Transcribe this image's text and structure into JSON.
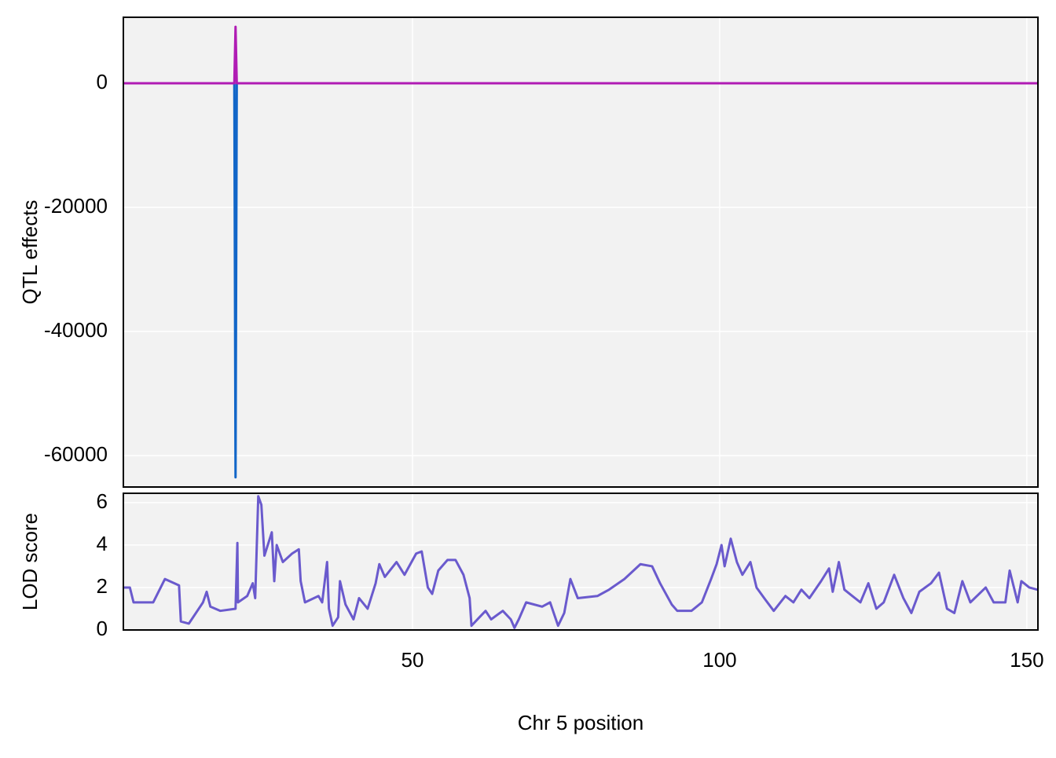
{
  "chart_data": [
    {
      "type": "line",
      "ylabel": "QTL effects",
      "xlim": [
        2.94,
        151.8
      ],
      "ylim": [
        -65063,
        10633
      ],
      "yticks": [
        0,
        -20000,
        -40000,
        -60000
      ],
      "grid": true,
      "series": [
        {
          "color": "#1266c8",
          "x": [
            2.94,
            21.0,
            21.2,
            21.4,
            151.8
          ],
          "values": [
            0,
            0,
            -63500,
            0,
            0
          ]
        },
        {
          "color": "#b01cb4",
          "x": [
            2.94,
            21.0,
            21.2,
            21.4,
            151.8
          ],
          "values": [
            0,
            0,
            9100,
            0,
            0
          ]
        }
      ]
    },
    {
      "type": "line",
      "ylabel": "LOD score",
      "xlabel": "Chr 5 position",
      "xlim": [
        2.94,
        151.8
      ],
      "ylim": [
        0,
        6.44
      ],
      "xticks": [
        50,
        100,
        150
      ],
      "yticks": [
        0,
        2,
        4,
        6
      ],
      "grid": true,
      "series": [
        {
          "color": "#6a5acd",
          "x": [
            3.0,
            4.0,
            4.6,
            7.8,
            9.7,
            12.0,
            12.3,
            13.6,
            15.9,
            16.5,
            17.1,
            18.7,
            21.2,
            21.5,
            21.6,
            23.1,
            24.0,
            24.4,
            24.9,
            25.4,
            25.9,
            27.1,
            27.5,
            27.9,
            28.9,
            30.4,
            31.5,
            31.8,
            32.5,
            34.7,
            35.3,
            36.1,
            36.4,
            37.0,
            37.9,
            38.2,
            39.1,
            40.4,
            41.3,
            42.7,
            44.0,
            44.6,
            45.5,
            47.4,
            48.7,
            50.6,
            51.5,
            52.5,
            53.2,
            54.2,
            55.7,
            57.0,
            58.3,
            59.3,
            59.6,
            60.9,
            61.9,
            62.8,
            64.7,
            66.0,
            66.6,
            67.3,
            68.5,
            71.1,
            72.4,
            73.7,
            74.7,
            75.7,
            76.9,
            80.1,
            82.0,
            84.5,
            87.1,
            89.0,
            90.3,
            92.2,
            93.1,
            95.4,
            97.1,
            98.6,
            99.5,
            100.3,
            100.8,
            101.8,
            102.8,
            103.7,
            105.0,
            106.0,
            107.5,
            108.8,
            110.7,
            112.0,
            113.3,
            114.6,
            116.5,
            117.8,
            118.4,
            119.4,
            120.3,
            121.6,
            122.9,
            124.2,
            125.5,
            126.7,
            128.4,
            129.9,
            131.2,
            132.5,
            134.4,
            135.7,
            137.0,
            138.2,
            139.5,
            140.8,
            143.3,
            144.6,
            146.5,
            147.2,
            148.5,
            149.1,
            150.4,
            151.7
          ],
          "values": [
            2.0,
            2.0,
            1.3,
            1.3,
            2.4,
            2.1,
            0.4,
            0.3,
            1.3,
            1.8,
            1.1,
            0.9,
            1.0,
            4.1,
            1.3,
            1.6,
            2.2,
            1.5,
            6.3,
            5.9,
            3.5,
            4.6,
            2.3,
            4.0,
            3.2,
            3.6,
            3.8,
            2.3,
            1.3,
            1.6,
            1.3,
            3.2,
            1.0,
            0.2,
            0.6,
            2.3,
            1.2,
            0.5,
            1.5,
            1.0,
            2.2,
            3.1,
            2.5,
            3.2,
            2.6,
            3.6,
            3.7,
            2.0,
            1.7,
            2.8,
            3.3,
            3.3,
            2.6,
            1.5,
            0.2,
            0.6,
            0.9,
            0.5,
            0.9,
            0.5,
            0.1,
            0.5,
            1.3,
            1.1,
            1.3,
            0.2,
            0.8,
            2.4,
            1.5,
            1.6,
            1.9,
            2.4,
            3.1,
            3.0,
            2.2,
            1.2,
            0.9,
            0.9,
            1.3,
            2.4,
            3.1,
            4.0,
            3.0,
            4.3,
            3.2,
            2.6,
            3.2,
            2.0,
            1.4,
            0.9,
            1.6,
            1.3,
            1.9,
            1.5,
            2.3,
            2.9,
            1.8,
            3.2,
            1.9,
            1.6,
            1.3,
            2.2,
            1.0,
            1.3,
            2.6,
            1.5,
            0.8,
            1.8,
            2.2,
            2.7,
            1.0,
            0.8,
            2.3,
            1.3,
            2.0,
            1.3,
            1.3,
            2.8,
            1.3,
            2.3,
            2.0,
            1.9
          ]
        }
      ]
    }
  ]
}
